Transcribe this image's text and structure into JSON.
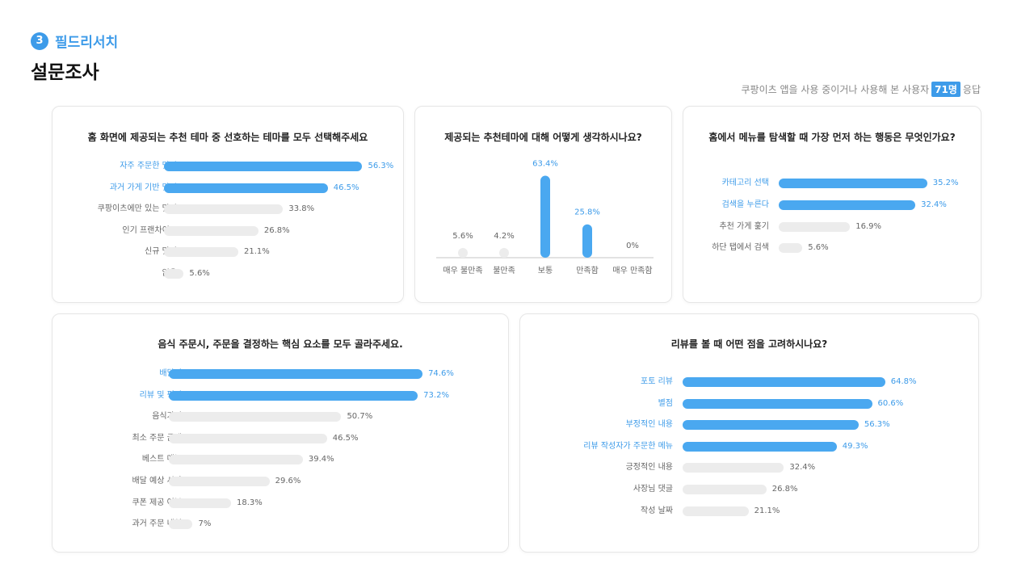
{
  "header": {
    "step_number": "3",
    "step_title": "필드리서치",
    "page_title": "설문조사",
    "respondents_prefix": "쿠팡이츠 앱을 사용 중이거나 사용해 본 사용자",
    "respondents_count": "71명",
    "respondents_suffix": "응답"
  },
  "colors": {
    "accent": "#3d9be9",
    "bar_highlight": "#4aa8f0",
    "bar_muted": "#ececec"
  },
  "chart_data": [
    {
      "type": "bar",
      "orientation": "horizontal",
      "title": "홈 화면에 제공되는 추천 테마 중 선호하는 테마를 모두 선택해주세요",
      "categories": [
        "자주 주문한 맛집",
        "과거 가게 기반 맛집",
        "쿠팡이츠에만 있는 맛집",
        "인기 프랜차이즈",
        "신규 맛집",
        "없음"
      ],
      "values": [
        56.3,
        46.5,
        33.8,
        26.8,
        21.1,
        5.6
      ],
      "value_labels": [
        "56.3%",
        "46.5%",
        "33.8%",
        "26.8%",
        "21.1%",
        "5.6%"
      ],
      "highlighted": [
        true,
        true,
        false,
        false,
        false,
        false
      ],
      "xlim": [
        0,
        100
      ]
    },
    {
      "type": "bar",
      "orientation": "vertical",
      "title": "제공되는 추천테마에 대해 어떻게 생각하시나요?",
      "categories": [
        "매우 불만족",
        "불만족",
        "보통",
        "만족함",
        "매우 만족함"
      ],
      "values": [
        5.6,
        4.2,
        63.4,
        25.8,
        0
      ],
      "value_labels": [
        "5.6%",
        "4.2%",
        "63.4%",
        "25.8%",
        "0%"
      ],
      "highlighted": [
        false,
        false,
        true,
        true,
        false
      ],
      "ylim": [
        0,
        100
      ]
    },
    {
      "type": "bar",
      "orientation": "horizontal",
      "title": "홈에서 메뉴를 탐색할 때 가장 먼저 하는 행동은 무엇인가요?",
      "categories": [
        "카테고리 선택",
        "검색을 누른다",
        "추천 가게 훑기",
        "하단 탭에서 검색"
      ],
      "values": [
        35.2,
        32.4,
        16.9,
        5.6
      ],
      "value_labels": [
        "35.2%",
        "32.4%",
        "16.9%",
        "5.6%"
      ],
      "highlighted": [
        true,
        true,
        false,
        false
      ],
      "xlim": [
        0,
        100
      ]
    },
    {
      "type": "bar",
      "orientation": "horizontal",
      "title": "음식 주문시, 주문을 결정하는 핵심 요소를 모두 골라주세요.",
      "categories": [
        "배달비",
        "리뷰 및 평점",
        "음식가격",
        "최소 주문 금액",
        "베스트 메뉴",
        "배달 예상 시간",
        "쿠폰 제공 여부",
        "과거 주문 내역"
      ],
      "values": [
        74.6,
        73.2,
        50.7,
        46.5,
        39.4,
        29.6,
        18.3,
        7
      ],
      "value_labels": [
        "74.6%",
        "73.2%",
        "50.7%",
        "46.5%",
        "39.4%",
        "29.6%",
        "18.3%",
        "7%"
      ],
      "highlighted": [
        true,
        true,
        false,
        false,
        false,
        false,
        false,
        false
      ],
      "xlim": [
        0,
        100
      ]
    },
    {
      "type": "bar",
      "orientation": "horizontal",
      "title": "리뷰를 볼 때 어떤 점을 고려하시나요?",
      "categories": [
        "포토 리뷰",
        "별점",
        "부정적인 내용",
        "리뷰 작성자가 주문한 메뉴",
        "긍정적인 내용",
        "사장님 댓글",
        "작성 날짜"
      ],
      "values": [
        64.8,
        60.6,
        56.3,
        49.3,
        32.4,
        26.8,
        21.1
      ],
      "value_labels": [
        "64.8%",
        "60.6%",
        "56.3%",
        "49.3%",
        "32.4%",
        "26.8%",
        "21.1%"
      ],
      "highlighted": [
        true,
        true,
        true,
        true,
        false,
        false,
        false
      ],
      "xlim": [
        0,
        100
      ]
    }
  ]
}
